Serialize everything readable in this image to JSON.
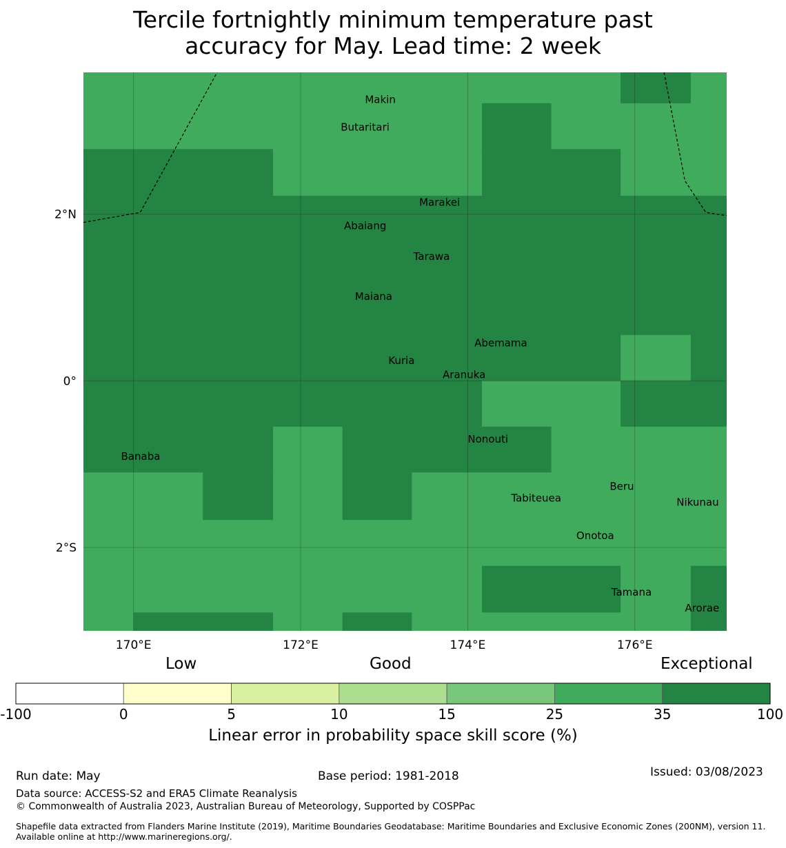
{
  "title": {
    "line1": "Tercile fortnightly minimum temperature past",
    "line2": "accuracy for May. Lead time: 2 week"
  },
  "map": {
    "lon_range": [
      169.4,
      177.1
    ],
    "lat_range": [
      -3.0,
      3.7
    ],
    "lon_ticks": [
      {
        "value": 170,
        "label": "170°E"
      },
      {
        "value": 172,
        "label": "172°E"
      },
      {
        "value": 174,
        "label": "174°E"
      },
      {
        "value": 176,
        "label": "176°E"
      }
    ],
    "lat_ticks": [
      {
        "value": 2,
        "label": "2°N"
      },
      {
        "value": 0,
        "label": "0°"
      },
      {
        "value": -2,
        "label": "2°S"
      }
    ],
    "colors": {
      "good": "#41ab5d",
      "exceptional": "#238443"
    },
    "grid_cells": [
      {
        "lon0": 169.4,
        "lon1": 177.1,
        "lat0": -3.0,
        "lat1": 3.7,
        "category": "good"
      },
      {
        "lon0": 169.4,
        "lon1": 171.67,
        "lat0": 2.22,
        "lat1": 2.78,
        "category": "exceptional"
      },
      {
        "lon0": 169.4,
        "lon1": 177.1,
        "lat0": 0.0,
        "lat1": 2.22,
        "category": "exceptional"
      },
      {
        "lon0": 174.17,
        "lon1": 175.0,
        "lat0": 2.78,
        "lat1": 3.33,
        "category": "exceptional"
      },
      {
        "lon0": 174.17,
        "lon1": 175.83,
        "lat0": 2.22,
        "lat1": 2.78,
        "category": "exceptional"
      },
      {
        "lon0": 175.83,
        "lon1": 176.67,
        "lat0": 3.33,
        "lat1": 3.7,
        "category": "exceptional"
      },
      {
        "lon0": 175.83,
        "lon1": 176.67,
        "lat0": 0.0,
        "lat1": 0.55,
        "category": "good"
      },
      {
        "lon0": 169.4,
        "lon1": 174.17,
        "lat0": -0.55,
        "lat1": 0.0,
        "category": "exceptional"
      },
      {
        "lon0": 175.83,
        "lon1": 177.1,
        "lat0": -0.55,
        "lat1": 0.0,
        "category": "exceptional"
      },
      {
        "lon0": 169.4,
        "lon1": 171.67,
        "lat0": -1.1,
        "lat1": -0.55,
        "category": "exceptional"
      },
      {
        "lon0": 172.5,
        "lon1": 175.0,
        "lat0": -1.1,
        "lat1": -0.55,
        "category": "exceptional"
      },
      {
        "lon0": 170.83,
        "lon1": 171.67,
        "lat0": -1.67,
        "lat1": -1.1,
        "category": "exceptional"
      },
      {
        "lon0": 172.5,
        "lon1": 173.33,
        "lat0": -1.67,
        "lat1": -1.1,
        "category": "exceptional"
      },
      {
        "lon0": 174.17,
        "lon1": 175.83,
        "lat0": -2.78,
        "lat1": -2.22,
        "category": "exceptional"
      },
      {
        "lon0": 176.67,
        "lon1": 177.1,
        "lat0": -3.0,
        "lat1": -2.22,
        "category": "exceptional"
      },
      {
        "lon0": 170.0,
        "lon1": 171.67,
        "lat0": -3.0,
        "lat1": -2.78,
        "category": "exceptional"
      },
      {
        "lon0": 172.5,
        "lon1": 173.33,
        "lat0": -3.0,
        "lat1": -2.78,
        "category": "exceptional"
      }
    ],
    "eez_boundaries": [
      [
        [
          169.4,
          1.9
        ],
        [
          170.08,
          2.02
        ],
        [
          171.0,
          3.7
        ]
      ],
      [
        [
          176.35,
          3.7
        ],
        [
          176.6,
          2.4
        ],
        [
          176.85,
          2.02
        ],
        [
          177.1,
          1.98
        ]
      ]
    ],
    "islands": [
      {
        "name": "Makin",
        "lon": 172.77,
        "lat": 3.33
      },
      {
        "name": "Butaritari",
        "lon": 172.48,
        "lat": 3.0
      },
      {
        "name": "Marakei",
        "lon": 173.42,
        "lat": 2.1
      },
      {
        "name": "Abaiang",
        "lon": 172.52,
        "lat": 1.82
      },
      {
        "name": "Tarawa",
        "lon": 173.35,
        "lat": 1.45
      },
      {
        "name": "Maiana",
        "lon": 172.65,
        "lat": 0.97
      },
      {
        "name": "Abemama",
        "lon": 174.08,
        "lat": 0.41
      },
      {
        "name": "Kuria",
        "lon": 173.05,
        "lat": 0.2
      },
      {
        "name": "Aranuka",
        "lon": 173.7,
        "lat": 0.03
      },
      {
        "name": "Nonouti",
        "lon": 174.0,
        "lat": -0.74
      },
      {
        "name": "Banaba",
        "lon": 169.85,
        "lat": -0.95
      },
      {
        "name": "Beru",
        "lon": 175.7,
        "lat": -1.31
      },
      {
        "name": "Tabiteuea",
        "lon": 174.52,
        "lat": -1.45
      },
      {
        "name": "Nikunau",
        "lon": 176.5,
        "lat": -1.5
      },
      {
        "name": "Onotoa",
        "lon": 175.3,
        "lat": -1.9
      },
      {
        "name": "Tamana",
        "lon": 175.72,
        "lat": -2.58
      },
      {
        "name": "Arorae",
        "lon": 176.6,
        "lat": -2.77
      }
    ]
  },
  "legend": {
    "low": "Low",
    "good": "Good",
    "exceptional": "Exceptional",
    "bins": [
      {
        "from": "-100",
        "color": "#ffffff"
      },
      {
        "from": "0",
        "color": "#ffffcc"
      },
      {
        "from": "5",
        "color": "#d9f0a3"
      },
      {
        "from": "10",
        "color": "#addd8e"
      },
      {
        "from": "15",
        "color": "#78c679"
      },
      {
        "from": "25",
        "color": "#41ab5d"
      },
      {
        "from": "35",
        "color": "#238443"
      }
    ],
    "tick_labels": [
      "-100",
      "0",
      "5",
      "10",
      "15",
      "25",
      "35",
      "100"
    ],
    "label": "Linear error in probability space skill score (%)"
  },
  "footer": {
    "run_date": "Run date: May",
    "base_period": "Base period: 1981-2018",
    "issued": "Issued: 03/08/2023",
    "data_source": "Data source: ACCESS-S2 and ERA5 Climate Reanalysis",
    "copyright": "© Commonwealth of Australia 2023, Australian Bureau of Meteorology, Supported by COSPPac",
    "shapefile": "Shapefile data extracted from Flanders Marine Institute (2019), Maritime Boundaries Geodatabase: Maritime Boundaries and Exclusive Economic Zones (200NM), version 11. Available online at http://www.marineregions.org/."
  }
}
